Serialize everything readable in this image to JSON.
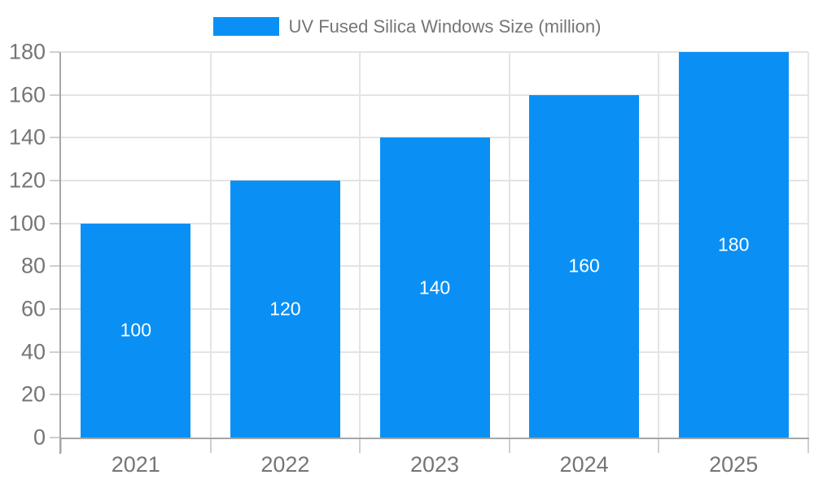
{
  "legend": {
    "label": "UV Fused Silica Windows Size (million)"
  },
  "chart_data": {
    "type": "bar",
    "title": "UV Fused Silica Windows Size (million)",
    "categories": [
      "2021",
      "2022",
      "2023",
      "2024",
      "2025"
    ],
    "series": [
      {
        "name": "UV Fused Silica Windows Size (million)",
        "values": [
          100,
          120,
          140,
          160,
          180
        ]
      }
    ],
    "value_labels": [
      "100",
      "120",
      "140",
      "160",
      "180"
    ],
    "xlabel": "",
    "ylabel": "",
    "ylim": [
      0,
      180
    ],
    "yticks": [
      0,
      20,
      40,
      60,
      80,
      100,
      120,
      140,
      160,
      180
    ],
    "grid": true,
    "legend_position": "top-center",
    "colors": {
      "bar": "#0a90f5",
      "value_label": "#ffffff",
      "axis_text": "#757575",
      "legend_text": "#757575",
      "gridline": "#e4e4e4",
      "axis_line": "#a6a6a6",
      "tick": "#cfcfcf",
      "background": "#ffffff"
    }
  }
}
